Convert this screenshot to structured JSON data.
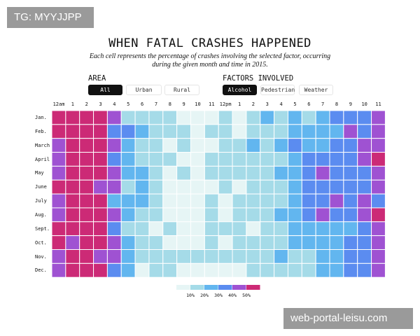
{
  "watermarks": {
    "top": "TG: MYYJJPP",
    "bottom": "web-portal-leisu.com"
  },
  "header": {
    "title": "WHEN FATAL CRASHES HAPPENED",
    "subtitle": "Each cell represents the percentage of crashes involving the selected factor, occurring during the given month and time in 2015."
  },
  "controls": {
    "area_label": "AREA",
    "area_options": [
      "All",
      "Urban",
      "Rural"
    ],
    "area_selected": "All",
    "factor_label": "FACTORS INVOLVED",
    "factor_options": [
      "Alcohol",
      "Pedestrian",
      "Weather"
    ],
    "factor_selected": "Alcohol"
  },
  "colors": [
    "#e6f5f5",
    "#a5dbe8",
    "#62b6ef",
    "#5b8cf0",
    "#9f52d2",
    "#cc2a76"
  ],
  "chart_data": {
    "type": "heatmap",
    "title": "WHEN FATAL CRASHES HAPPENED",
    "x": [
      "12am",
      "1",
      "2",
      "3",
      "4",
      "5",
      "6",
      "7",
      "8",
      "9",
      "10",
      "11",
      "12pm",
      "1",
      "2",
      "3",
      "4",
      "5",
      "6",
      "7",
      "8",
      "9",
      "10",
      "11"
    ],
    "y": [
      "Jan.",
      "Feb.",
      "March",
      "April",
      "May",
      "June",
      "July",
      "Aug.",
      "Sept.",
      "Oct.",
      "Nov.",
      "Dec."
    ],
    "unit": "% of crashes (approx. bin midpoints)",
    "bins": [
      0,
      10,
      20,
      30,
      40,
      50,
      60
    ],
    "legend": {
      "labels": [
        "10%",
        "20%",
        "30%",
        "40%",
        "50%"
      ],
      "placement": "bottom-center"
    },
    "values": [
      [
        55,
        55,
        55,
        55,
        45,
        15,
        15,
        15,
        15,
        5,
        5,
        5,
        15,
        5,
        15,
        25,
        15,
        25,
        15,
        25,
        35,
        35,
        35,
        45
      ],
      [
        55,
        55,
        55,
        55,
        35,
        35,
        25,
        15,
        15,
        15,
        5,
        15,
        15,
        5,
        15,
        15,
        15,
        25,
        25,
        25,
        25,
        45,
        35,
        45
      ],
      [
        45,
        55,
        55,
        55,
        45,
        25,
        15,
        15,
        5,
        15,
        5,
        5,
        15,
        15,
        25,
        15,
        25,
        35,
        25,
        25,
        35,
        35,
        45,
        45
      ],
      [
        45,
        55,
        55,
        55,
        35,
        25,
        15,
        15,
        15,
        5,
        5,
        15,
        15,
        15,
        15,
        15,
        15,
        25,
        35,
        35,
        35,
        35,
        45,
        55
      ],
      [
        45,
        55,
        55,
        55,
        45,
        25,
        25,
        15,
        5,
        15,
        5,
        15,
        15,
        15,
        15,
        15,
        25,
        25,
        35,
        45,
        35,
        35,
        35,
        45
      ],
      [
        55,
        55,
        55,
        45,
        45,
        15,
        25,
        15,
        5,
        5,
        5,
        5,
        15,
        5,
        15,
        15,
        15,
        25,
        35,
        35,
        35,
        35,
        35,
        45
      ],
      [
        45,
        55,
        55,
        55,
        25,
        25,
        25,
        15,
        5,
        5,
        5,
        15,
        5,
        15,
        15,
        15,
        15,
        25,
        35,
        35,
        45,
        35,
        45,
        35
      ],
      [
        45,
        55,
        55,
        55,
        45,
        25,
        15,
        15,
        5,
        5,
        5,
        15,
        5,
        15,
        15,
        15,
        25,
        25,
        35,
        45,
        35,
        35,
        45,
        55
      ],
      [
        55,
        55,
        55,
        55,
        35,
        15,
        15,
        5,
        15,
        5,
        5,
        15,
        15,
        15,
        5,
        15,
        15,
        25,
        25,
        25,
        25,
        25,
        35,
        45
      ],
      [
        55,
        45,
        55,
        55,
        45,
        25,
        15,
        15,
        5,
        5,
        5,
        15,
        5,
        15,
        15,
        15,
        15,
        25,
        25,
        25,
        25,
        35,
        35,
        45
      ],
      [
        45,
        55,
        55,
        45,
        45,
        25,
        15,
        15,
        15,
        15,
        15,
        15,
        15,
        15,
        15,
        15,
        25,
        15,
        15,
        25,
        25,
        35,
        35,
        45
      ],
      [
        45,
        55,
        55,
        55,
        35,
        25,
        5,
        15,
        15,
        5,
        5,
        5,
        5,
        5,
        15,
        15,
        15,
        15,
        15,
        25,
        25,
        35,
        35,
        45
      ]
    ]
  }
}
